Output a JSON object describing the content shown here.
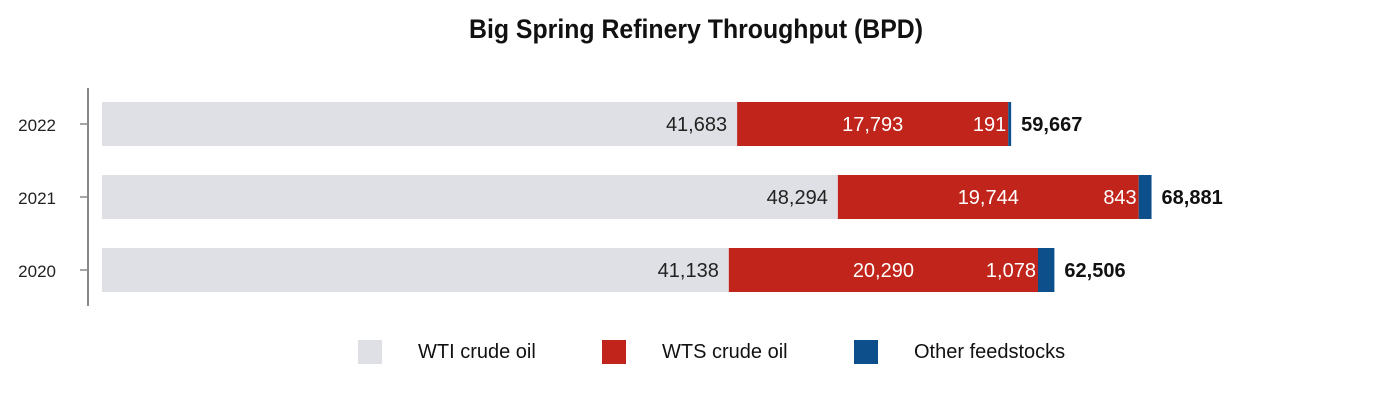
{
  "chart_data": {
    "type": "bar",
    "orientation": "horizontal",
    "stacked": true,
    "title": "Big Spring Refinery Throughput (BPD)",
    "categories": [
      "2022",
      "2021",
      "2020"
    ],
    "series": [
      {
        "name": "WTI crude oil",
        "color": "#dfe0e5",
        "values": [
          41683,
          48294,
          41138
        ],
        "labels": [
          "41,683",
          "48,294",
          "41,138"
        ],
        "label_color": "#222222"
      },
      {
        "name": "WTS crude oil",
        "color": "#c0241a",
        "values": [
          17793,
          19744,
          20290
        ],
        "labels": [
          "17,793",
          "19,744",
          "20,290"
        ],
        "label_color": "#ffffff"
      },
      {
        "name": "Other feedstocks",
        "color": "#0d4f8b",
        "values": [
          191,
          843,
          1078
        ],
        "labels": [
          "191",
          "843",
          "1,078"
        ],
        "label_color": "#ffffff"
      }
    ],
    "totals": [
      59667,
      68881,
      62506
    ],
    "total_labels": [
      "59,667",
      "68,881",
      "62,506"
    ],
    "xlim": [
      0,
      70000
    ],
    "grid": false,
    "legend_position": "bottom"
  }
}
